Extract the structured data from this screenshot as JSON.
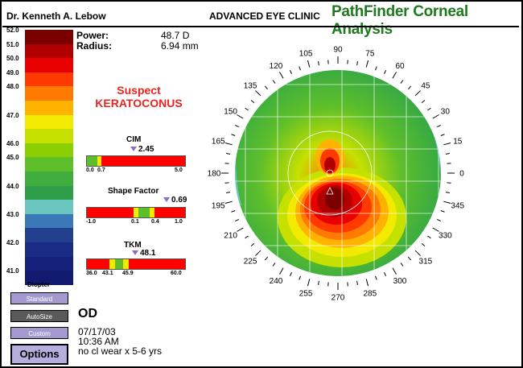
{
  "header": {
    "doctor": "Dr. Kenneth A. Lebow",
    "clinic": "ADVANCED EYE CLINIC",
    "app_title": "PathFinder Corneal Analysis"
  },
  "scale": {
    "unit": "Diopter",
    "steps": [
      {
        "label": "52.0",
        "color": "#7a0000"
      },
      {
        "label": "51.0",
        "color": "#b10000"
      },
      {
        "label": "50.0",
        "color": "#e80000"
      },
      {
        "label": "49.0",
        "color": "#ff3a00"
      },
      {
        "label": "48.0",
        "color": "#ff7a00"
      },
      {
        "label": "",
        "color": "#ffb300"
      },
      {
        "label": "47.0",
        "color": "#f2ea00"
      },
      {
        "label": "",
        "color": "#c6e000"
      },
      {
        "label": "46.0",
        "color": "#8ccf00"
      },
      {
        "label": "45.0",
        "color": "#5fbf2a"
      },
      {
        "label": "",
        "color": "#3fae3f"
      },
      {
        "label": "44.0",
        "color": "#2e9e4a"
      },
      {
        "label": "",
        "color": "#6cc6c0"
      },
      {
        "label": "43.0",
        "color": "#3b78b8"
      },
      {
        "label": "",
        "color": "#23408f"
      },
      {
        "label": "42.0",
        "color": "#1a2b86"
      },
      {
        "label": "",
        "color": "#15207a"
      },
      {
        "label": "41.0",
        "color": "#101a6e"
      }
    ]
  },
  "readings": {
    "power_label": "Power:",
    "power_value": "48.7 D",
    "radius_label": "Radius:",
    "radius_value": "6.94 mm"
  },
  "diagnosis": {
    "line1": "Suspect",
    "line2": "KERATOCONUS"
  },
  "indices": {
    "cim": {
      "title": "CIM",
      "value": "2.45",
      "value_number": 2.45,
      "ticks": [
        "0.0",
        "0.7",
        "5.0"
      ]
    },
    "shape": {
      "title": "Shape Factor",
      "value": "0.69",
      "value_number": 0.69,
      "ticks": [
        "-1.0",
        "0.1",
        "0.4",
        "1.0"
      ]
    },
    "tkm": {
      "title": "TKM",
      "value": "48.1",
      "value_number": 48.1,
      "ticks": [
        "36.0",
        "43.1",
        "45.9",
        "60.0"
      ]
    }
  },
  "buttons": {
    "standard": "Standard",
    "autosize": "AutoSize",
    "custom": "Custom",
    "options": "Options"
  },
  "exam": {
    "eye": "OD",
    "date": "07/17/03",
    "time": "10:36 AM",
    "note": "no cl wear x 5-6 yrs"
  },
  "map": {
    "angle_labels": [
      "0",
      "15",
      "30",
      "45",
      "60",
      "75",
      "90",
      "105",
      "120",
      "135",
      "150",
      "165",
      "180",
      "195",
      "210",
      "225",
      "240",
      "255",
      "270",
      "285",
      "300",
      "315",
      "330",
      "345"
    ]
  }
}
